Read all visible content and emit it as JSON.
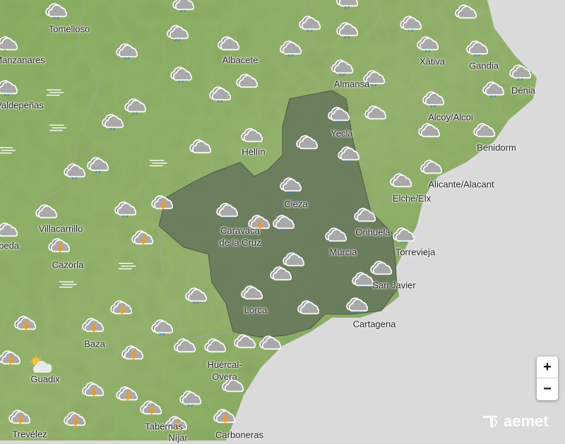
{
  "map": {
    "colors": {
      "sea": "#dadada",
      "land": "#8fb06a",
      "region": "#6f7d68",
      "rain": "#3a7fd0",
      "storm": "#f29a1c"
    },
    "places": [
      "Tomelloso",
      "Manzanares",
      "Albacete",
      "Almansa",
      "Xàtiva",
      "Gandia",
      "Dénia",
      "Valdepeñas",
      "Alcoy/Alcoi",
      "Yecla",
      "Benidorm",
      "Hellín",
      "Alicante/Alacant",
      "Elche/Elx",
      "Cieza",
      "Villacarrillo",
      "Úbeda",
      "Caravaca\nde la Cruz",
      "Orihuela",
      "Torrevieja",
      "Murcia",
      "Cazorla",
      "San Javier",
      "Lorca",
      "Cartagena",
      "Baza",
      "Huércal-\nOvera",
      "Guadix",
      "Trevélez",
      "Tabernas",
      "Níjar",
      "Carboneras"
    ],
    "weather_icons": [
      "rain",
      "rain",
      "rain",
      "cloud",
      "snow",
      "rain",
      "rain",
      "cloud",
      "rain",
      "rain",
      "rain",
      "rain",
      "rain",
      "rain",
      "rain",
      "rain",
      "rain",
      "cloud",
      "rain",
      "rain",
      "rain",
      "rain",
      "rain",
      "rain",
      "fog",
      "rain",
      "cloud",
      "rain",
      "fog",
      "cloud",
      "cloud",
      "cloud",
      "cloud",
      "cloud",
      "rain",
      "fog",
      "fog",
      "rain",
      "rain",
      "cloud",
      "cloud",
      "rain",
      "storm",
      "rain",
      "cloud",
      "rain",
      "storm",
      "rain",
      "cloud",
      "cloud",
      "cloud",
      "rain",
      "storm",
      "storm",
      "cloud",
      "fog",
      "cloud",
      "cloud",
      "rain",
      "fog",
      "rain",
      "cloud",
      "storm",
      "cloud",
      "rain",
      "storm",
      "storm",
      "rain",
      "cloud",
      "cloud",
      "cloud",
      "cloud",
      "storm",
      "storm",
      "partly-sunny",
      "storm",
      "storm",
      "rain",
      "cloud",
      "storm",
      "storm",
      "storm",
      "storm",
      "storm"
    ]
  },
  "controls": {
    "zoom_in": "+",
    "zoom_out": "−"
  },
  "logo": {
    "text": "aemet"
  }
}
